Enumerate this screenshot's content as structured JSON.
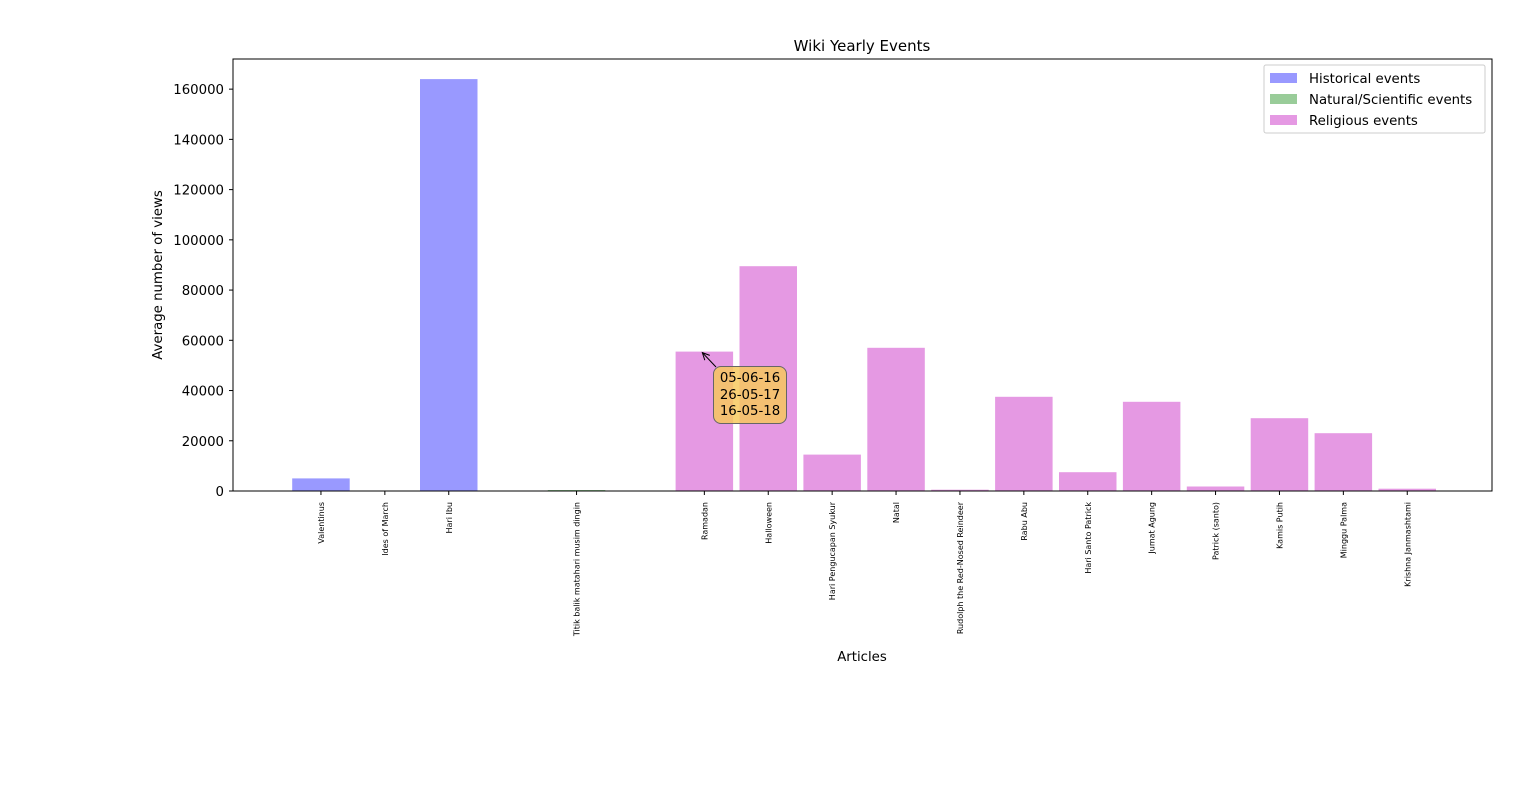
{
  "chart_data": {
    "type": "bar",
    "title": "Wiki Yearly Events",
    "xlabel": "Articles",
    "ylabel": "Average number of views",
    "ylim": [
      0,
      172000
    ],
    "yticks": [
      0,
      20000,
      40000,
      60000,
      80000,
      100000,
      120000,
      140000,
      160000
    ],
    "grid": false,
    "legend_position": "top-right",
    "series": [
      {
        "name": "Historical events",
        "color": "#9999ff",
        "categories": [
          "Valentinus",
          "Ides of March",
          "Hari Ibu"
        ],
        "values": [
          5000,
          200,
          164000
        ]
      },
      {
        "name": "Natural/Scientific events",
        "color": "#99cc99",
        "categories": [
          "Titik balik matahari musim dingin"
        ],
        "values": [
          400
        ]
      },
      {
        "name": "Religious events",
        "color": "#e599e3",
        "categories": [
          "Ramadan",
          "Halloween",
          "Hari Pengucapan Syukur",
          "Natal",
          "Rudolph the Red-Nosed Reindeer",
          "Rabu Abu",
          "Hari Santo Patrick",
          "Jumat Agung",
          "Patrick (santo)",
          "Kamis Putih",
          "Minggu Palma",
          "Krishna Janmashtami"
        ],
        "values": [
          55500,
          89500,
          14500,
          57000,
          500,
          37500,
          7500,
          35500,
          1800,
          29000,
          23000,
          900
        ]
      }
    ],
    "annotation": {
      "target_category": "Ramadan",
      "lines": [
        "05-06-16",
        "26-05-17",
        "16-05-18"
      ],
      "box_color": "#f2c96b"
    }
  }
}
